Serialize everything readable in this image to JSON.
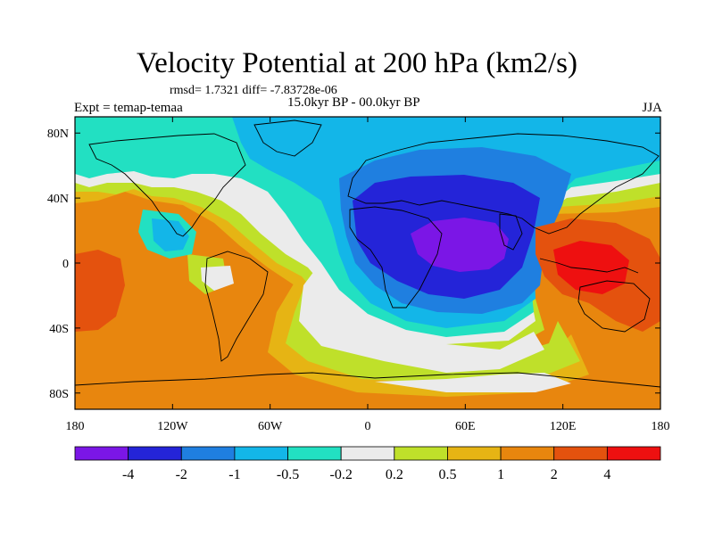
{
  "title": "Velocity Potential at 200 hPa (km2/s)",
  "stats_line": "rmsd= 1.7321 diff= -7.83728e-06",
  "left_label": "Expt = temap-temaa",
  "center_label": "15.0kyr BP - 00.0kyr BP",
  "right_label": "JJA",
  "colors": {
    "c_m4": "#7b16e6",
    "c_m4_to_m2": "#2424d8",
    "c_m2_to_m1": "#1f7fe0",
    "c_m1_to_m05": "#13b6e8",
    "c_m05_to_m02": "#22e0c2",
    "c_m02_to_02": "#ebebeb",
    "c_02_to_05": "#bfe02a",
    "c_05_to_1": "#e6b414",
    "c_1_to_2": "#e8860e",
    "c_2_to_4": "#e4520e",
    "c_4": "#ee1010"
  },
  "chart_data": {
    "type": "heatmap",
    "title": "Velocity Potential at 200 hPa (km2/s)",
    "projection": "cylindrical-equidistant",
    "xlim": [
      -180,
      180
    ],
    "ylim": [
      -90,
      90
    ],
    "x_ticks": [
      {
        "value": -180,
        "label": "180"
      },
      {
        "value": -120,
        "label": "120W"
      },
      {
        "value": -60,
        "label": "60W"
      },
      {
        "value": 0,
        "label": "0"
      },
      {
        "value": 60,
        "label": "60E"
      },
      {
        "value": 120,
        "label": "120E"
      },
      {
        "value": 180,
        "label": "180"
      }
    ],
    "y_ticks": [
      {
        "value": 80,
        "label": "80N"
      },
      {
        "value": 40,
        "label": "40N"
      },
      {
        "value": 0,
        "label": "0"
      },
      {
        "value": -40,
        "label": "40S"
      },
      {
        "value": -80,
        "label": "80S"
      }
    ],
    "contour_levels": [
      -4,
      -2,
      -1,
      -0.5,
      -0.2,
      0.2,
      0.5,
      1,
      2,
      4
    ],
    "colorbar_labels": [
      "-4",
      "-2",
      "-1",
      "-0.5",
      "-0.2",
      "0.2",
      "0.5",
      "1",
      "2",
      "4"
    ],
    "min_region": {
      "lon": 50,
      "lat": 10,
      "level": "< -4"
    },
    "max_region": {
      "lon": 125,
      "lat": -10,
      "level": "> 4"
    },
    "legend_placement": "bottom"
  }
}
